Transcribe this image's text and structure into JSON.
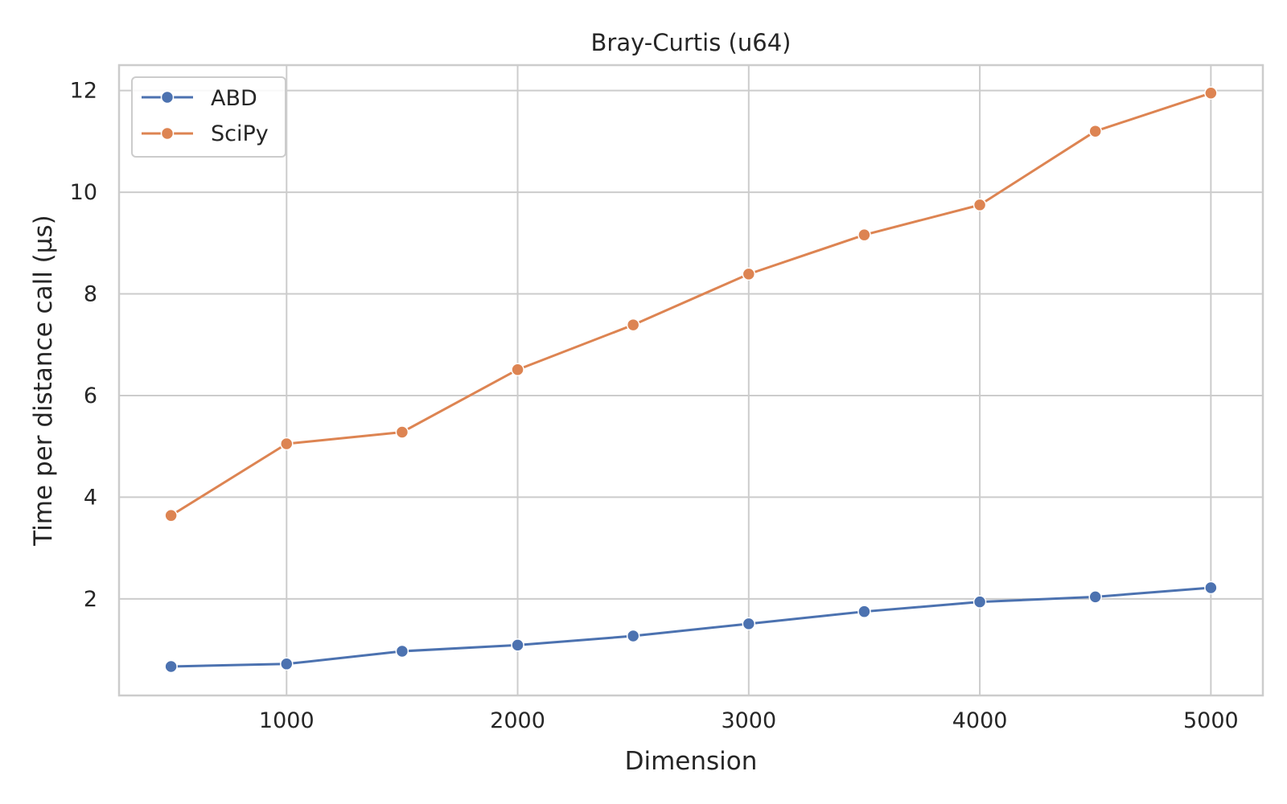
{
  "chart_data": {
    "type": "line",
    "title": "Bray-Curtis (u64)",
    "xlabel": "Dimension",
    "ylabel": "Time per distance call (µs)",
    "x": [
      500,
      1000,
      1500,
      2000,
      2500,
      3000,
      3500,
      4000,
      4500,
      5000
    ],
    "xlim": [
      275,
      5225
    ],
    "ylim": [
      0.1,
      12.5
    ],
    "xticks": [
      1000,
      2000,
      3000,
      4000,
      5000
    ],
    "yticks": [
      2,
      4,
      6,
      8,
      10,
      12
    ],
    "xtick_labels": [
      "1000",
      "2000",
      "3000",
      "4000",
      "5000"
    ],
    "ytick_labels": [
      "2",
      "4",
      "6",
      "8",
      "10",
      "12"
    ],
    "grid": true,
    "legend_position": "top-left",
    "series": [
      {
        "name": "ABD",
        "color": "#4c72b0",
        "values": [
          0.67,
          0.72,
          0.97,
          1.09,
          1.27,
          1.51,
          1.75,
          1.94,
          2.04,
          2.22
        ]
      },
      {
        "name": "SciPy",
        "color": "#dd8452",
        "values": [
          3.64,
          5.05,
          5.28,
          6.51,
          7.39,
          8.39,
          9.16,
          9.75,
          11.2,
          11.95
        ]
      }
    ]
  }
}
